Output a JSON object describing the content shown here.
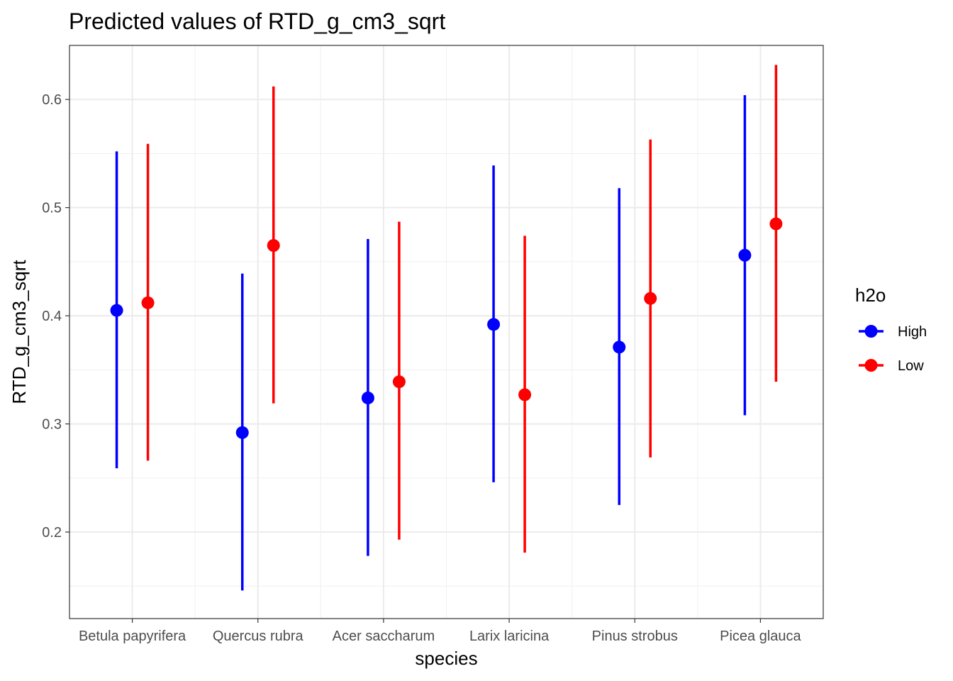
{
  "chart_data": {
    "type": "scatter",
    "subtype": "pointrange",
    "title": "Predicted values of RTD_g_cm3_sqrt",
    "xlabel": "species",
    "ylabel": "RTD_g_cm3_sqrt",
    "categories": [
      "Betula papyrifera",
      "Quercus rubra",
      "Acer saccharum",
      "Larix laricina",
      "Pinus strobus",
      "Picea glauca"
    ],
    "ylim": [
      0.12,
      0.65
    ],
    "yticks": [
      0.2,
      0.3,
      0.4,
      0.5,
      0.6
    ],
    "ytick_labels": [
      "0.2",
      "0.3",
      "0.4",
      "0.5",
      "0.6"
    ],
    "grid": true,
    "legend": {
      "title": "h2o",
      "position": "right"
    },
    "series": [
      {
        "name": "High",
        "color": "#0000ff",
        "values": [
          0.405,
          0.292,
          0.324,
          0.392,
          0.371,
          0.456
        ],
        "lower": [
          0.259,
          0.146,
          0.178,
          0.246,
          0.225,
          0.308
        ],
        "upper": [
          0.552,
          0.439,
          0.471,
          0.539,
          0.518,
          0.604
        ]
      },
      {
        "name": "Low",
        "color": "#ff0000",
        "values": [
          0.412,
          0.465,
          0.339,
          0.327,
          0.416,
          0.485
        ],
        "lower": [
          0.266,
          0.319,
          0.193,
          0.181,
          0.269,
          0.339
        ],
        "upper": [
          0.559,
          0.612,
          0.487,
          0.474,
          0.563,
          0.632
        ]
      }
    ]
  }
}
